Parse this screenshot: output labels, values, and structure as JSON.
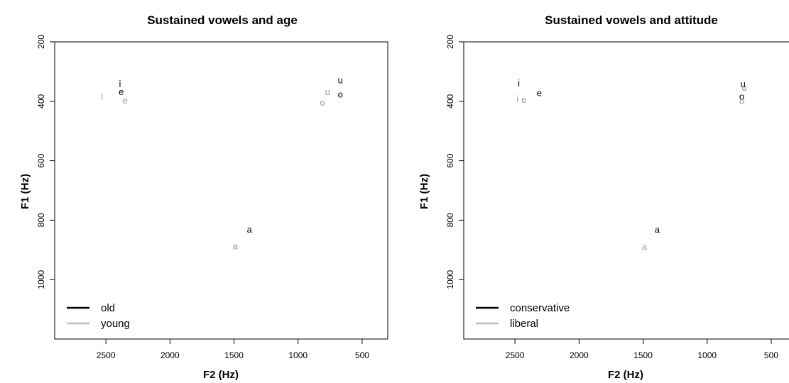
{
  "colors": {
    "old": "#000000",
    "young": "#999999",
    "legend_young": "#bbbbbb"
  },
  "chart_data": [
    {
      "type": "scatter",
      "title": "Sustained vowels and age",
      "xlabel": "F2 (Hz)",
      "ylabel": "F1 (Hz)",
      "xlim": [
        2900,
        300
      ],
      "ylim": [
        1200,
        200
      ],
      "x_reversed": true,
      "y_reversed": true,
      "xticks": [
        2500,
        2000,
        1500,
        1000,
        500
      ],
      "yticks": [
        200,
        400,
        600,
        800,
        1000
      ],
      "grid": false,
      "legend_position": "bottom-left",
      "legend": [
        "old",
        "young"
      ],
      "series": [
        {
          "name": "old",
          "color": "#000000",
          "points": [
            {
              "label": "i",
              "x": 2390,
              "y": 342
            },
            {
              "label": "e",
              "x": 2380,
              "y": 370
            },
            {
              "label": "u",
              "x": 670,
              "y": 330
            },
            {
              "label": "o",
              "x": 670,
              "y": 378
            },
            {
              "label": "a",
              "x": 1380,
              "y": 832
            }
          ]
        },
        {
          "name": "young",
          "color": "#999999",
          "points": [
            {
              "label": "i",
              "x": 2530,
              "y": 385
            },
            {
              "label": "e",
              "x": 2350,
              "y": 398
            },
            {
              "label": "u",
              "x": 770,
              "y": 370
            },
            {
              "label": "o",
              "x": 810,
              "y": 405
            },
            {
              "label": "a",
              "x": 1490,
              "y": 888
            }
          ]
        }
      ]
    },
    {
      "type": "scatter",
      "title": "Sustained vowels and attitude",
      "xlabel": "F2 (Hz)",
      "ylabel": "F1 (Hz)",
      "xlim": [
        2900,
        300
      ],
      "ylim": [
        1200,
        200
      ],
      "x_reversed": true,
      "y_reversed": true,
      "xticks": [
        2500,
        2000,
        1500,
        1000,
        500
      ],
      "yticks": [
        200,
        400,
        600,
        800,
        1000
      ],
      "grid": false,
      "legend_position": "bottom-left",
      "legend": [
        "conservative",
        "liberal"
      ],
      "series": [
        {
          "name": "conservative",
          "color": "#000000",
          "points": [
            {
              "label": "i",
              "x": 2470,
              "y": 340
            },
            {
              "label": "e",
              "x": 2310,
              "y": 373
            },
            {
              "label": "u",
              "x": 720,
              "y": 343
            },
            {
              "label": "o",
              "x": 730,
              "y": 385
            },
            {
              "label": "a",
              "x": 1390,
              "y": 832
            }
          ]
        },
        {
          "name": "liberal",
          "color": "#999999",
          "points": [
            {
              "label": "i",
              "x": 2480,
              "y": 393
            },
            {
              "label": "e",
              "x": 2430,
              "y": 396
            },
            {
              "label": "u",
              "x": 710,
              "y": 355
            },
            {
              "label": "o",
              "x": 730,
              "y": 400
            },
            {
              "label": "a",
              "x": 1490,
              "y": 890
            }
          ]
        }
      ]
    }
  ]
}
